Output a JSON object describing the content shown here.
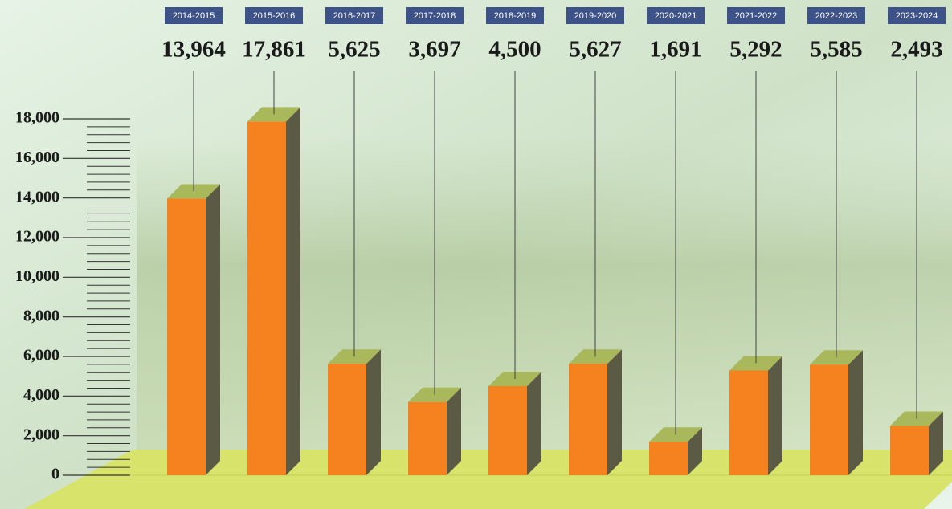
{
  "chart_data": {
    "type": "bar",
    "categories": [
      "2014-2015",
      "2015-2016",
      "2016-2017",
      "2017-2018",
      "2018-2019",
      "2019-2020",
      "2020-2021",
      "2021-2022",
      "2022-2023",
      "2023-2024"
    ],
    "values": [
      13964,
      17861,
      5625,
      3697,
      4500,
      5627,
      1691,
      5292,
      5585,
      2493
    ],
    "value_labels": [
      "13,964",
      "17,861",
      "5,625",
      "3,697",
      "4,500",
      "5,627",
      "1,691",
      "5,292",
      "5,585",
      "2,493"
    ],
    "color": "#f5821f",
    "ylim": [
      0,
      18000
    ],
    "yticks": [
      0,
      {
        "value": 2000,
        "label": "2,000"
      },
      {
        "value": 4000,
        "label": "4,000"
      },
      {
        "value": 6000,
        "label": "6,000"
      },
      {
        "value": 8000,
        "label": "8,000"
      },
      {
        "value": 10000,
        "label": "10,000"
      },
      {
        "value": 12000,
        "label": "12,000"
      },
      {
        "value": 14000,
        "label": "14,000"
      },
      {
        "value": 16000,
        "label": "16,000"
      },
      {
        "value": 18000,
        "label": "18,000"
      }
    ]
  }
}
